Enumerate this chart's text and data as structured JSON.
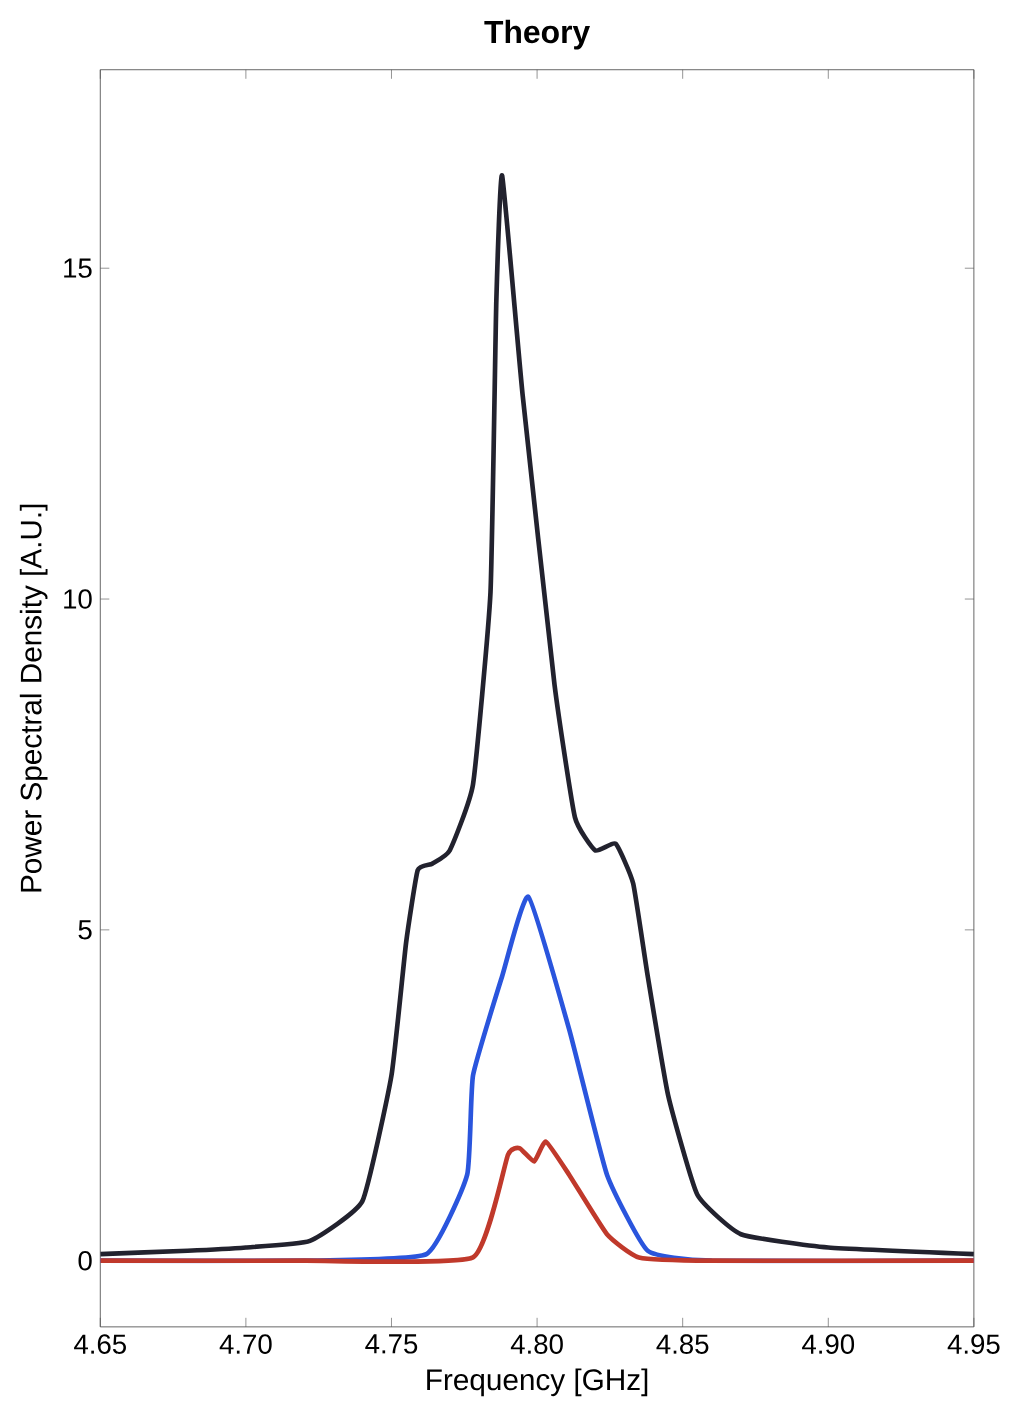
{
  "chart_data": {
    "type": "line",
    "title": "Theory",
    "xlabel": "Frequency [GHz]",
    "ylabel": "Power Spectral Density [A.U.]",
    "xlim": [
      4.65,
      4.95
    ],
    "ylim": [
      -1,
      18
    ],
    "xticks": [
      4.65,
      {
        "value": 4.7,
        "label": "4.70"
      },
      4.75,
      {
        "value": 4.8,
        "label": "4.80"
      },
      4.85,
      {
        "value": 4.9,
        "label": "4.90"
      },
      4.95
    ],
    "yticks": [
      0,
      5,
      10,
      15
    ],
    "grid": false,
    "marker": "none",
    "line_style": "solid",
    "series": [
      {
        "color": "#22222e",
        "x": [
          4.65,
          4.68,
          4.7,
          4.722,
          4.74,
          4.75,
          4.755,
          4.759,
          4.764,
          4.77,
          4.778,
          4.784,
          4.786,
          4.788,
          4.795,
          4.806,
          4.813,
          4.82,
          4.827,
          4.833,
          4.838,
          4.845,
          4.855,
          4.87,
          4.9,
          4.95
        ],
        "values": [
          0.1,
          0.15,
          0.2,
          0.3,
          0.9,
          2.8,
          4.8,
          5.9,
          6.0,
          6.2,
          7.2,
          10.1,
          14.5,
          16.4,
          13.1,
          8.7,
          6.7,
          6.2,
          6.3,
          5.7,
          4.3,
          2.5,
          1.0,
          0.4,
          0.2,
          0.1
        ]
      },
      {
        "color": "#2a55dd",
        "x": [
          4.65,
          4.72,
          4.762,
          4.776,
          4.778,
          4.788,
          4.797,
          4.811,
          4.824,
          4.838,
          4.86,
          4.95
        ],
        "values": [
          0,
          0,
          0.1,
          1.3,
          2.8,
          4.3,
          5.5,
          3.5,
          1.3,
          0.15,
          0,
          0
        ]
      },
      {
        "color": "#c0392b",
        "x": [
          4.65,
          4.72,
          4.778,
          4.79,
          4.794,
          4.799,
          4.803,
          4.811,
          4.824,
          4.835,
          4.86,
          4.95
        ],
        "values": [
          0,
          0,
          0.05,
          1.6,
          1.7,
          1.5,
          1.8,
          1.3,
          0.4,
          0.05,
          0,
          0
        ]
      }
    ]
  }
}
